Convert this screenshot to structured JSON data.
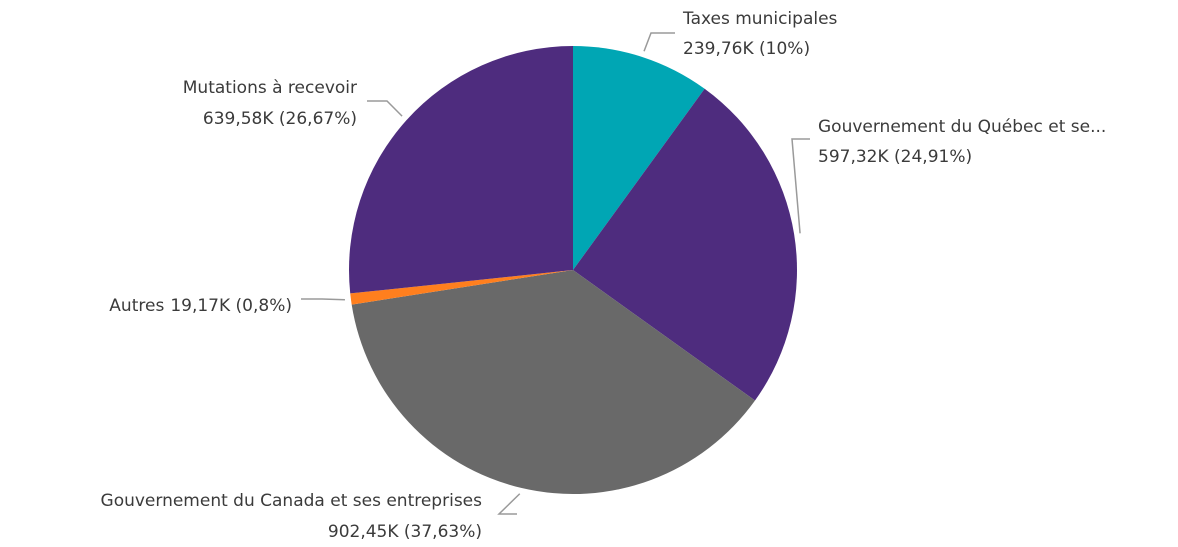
{
  "chart_data": {
    "type": "pie",
    "title": "",
    "unit": "K",
    "start_angle_deg": 0,
    "direction": "clockwise",
    "slices": [
      {
        "label": "Taxes municipales",
        "value": 239.76,
        "value_text": "239,76K (10%)",
        "percent": 10.0,
        "color": "#00a6b4"
      },
      {
        "label": "Gouvernement du Québec et se...",
        "value": 597.32,
        "value_text": "597,32K (24,91%)",
        "percent": 24.91,
        "color": "#4e2c7e"
      },
      {
        "label": "Gouvernement du Canada et ses entreprises",
        "value": 902.45,
        "value_text": "902,45K (37,63%)",
        "percent": 37.63,
        "color": "#696969"
      },
      {
        "label": "Autres",
        "value": 19.17,
        "value_text": "19,17K (0,8%)",
        "percent": 0.8,
        "color": "#ff7f1e"
      },
      {
        "label": "Mutations à recevoir",
        "value": 639.58,
        "value_text": "639,58K (26,67%)",
        "percent": 26.67,
        "color": "#4e2c7e"
      }
    ]
  }
}
